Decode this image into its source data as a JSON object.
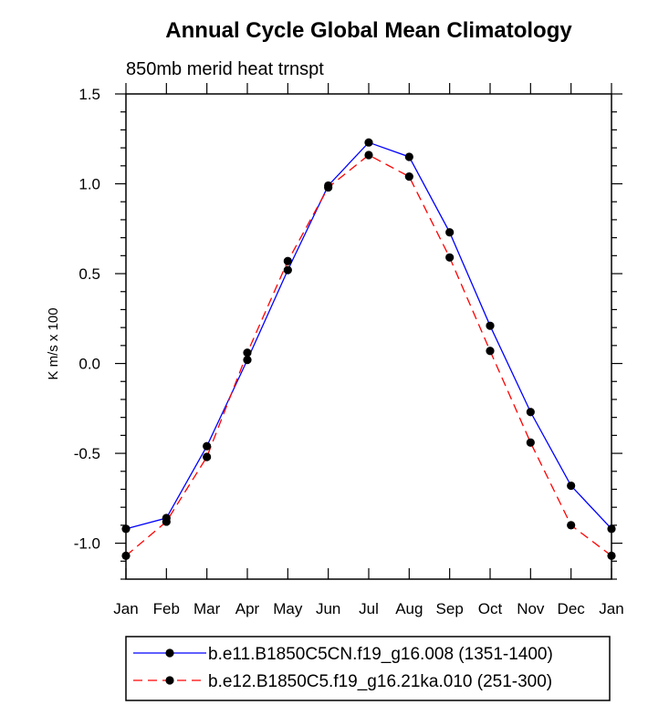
{
  "chart_data": {
    "type": "line",
    "title": "Annual Cycle Global Mean Climatology",
    "subtitle": "850mb merid heat trnspt",
    "xlabel": "",
    "ylabel": "K m/s x 100",
    "categories": [
      "Jan",
      "Feb",
      "Mar",
      "Apr",
      "May",
      "Jun",
      "Jul",
      "Aug",
      "Sep",
      "Oct",
      "Nov",
      "Dec",
      "Jan"
    ],
    "ylim": [
      -1.2,
      1.5
    ],
    "yticks": [
      -1.0,
      -0.5,
      0.0,
      0.5,
      1.0,
      1.5
    ],
    "ytick_labels": [
      "-1.0",
      "-0.5",
      "0.0",
      "0.5",
      "1.0",
      "1.5"
    ],
    "legend_position": "bottom",
    "series": [
      {
        "name": "b.e11.B1850C5CN.f19_g16.008 (1351-1400)",
        "color": "#0000ff",
        "dash": "solid",
        "values": [
          -0.92,
          -0.86,
          -0.46,
          0.02,
          0.52,
          0.99,
          1.23,
          1.15,
          0.73,
          0.21,
          -0.27,
          -0.68,
          -0.92
        ]
      },
      {
        "name": "b.e12.B1850C5.f19_g16.21ka.010 (251-300)",
        "color": "#ff0000",
        "dash": "dashed",
        "values": [
          -1.07,
          -0.88,
          -0.52,
          0.06,
          0.57,
          0.98,
          1.16,
          1.04,
          0.59,
          0.07,
          -0.44,
          -0.9,
          -1.07
        ]
      }
    ]
  }
}
